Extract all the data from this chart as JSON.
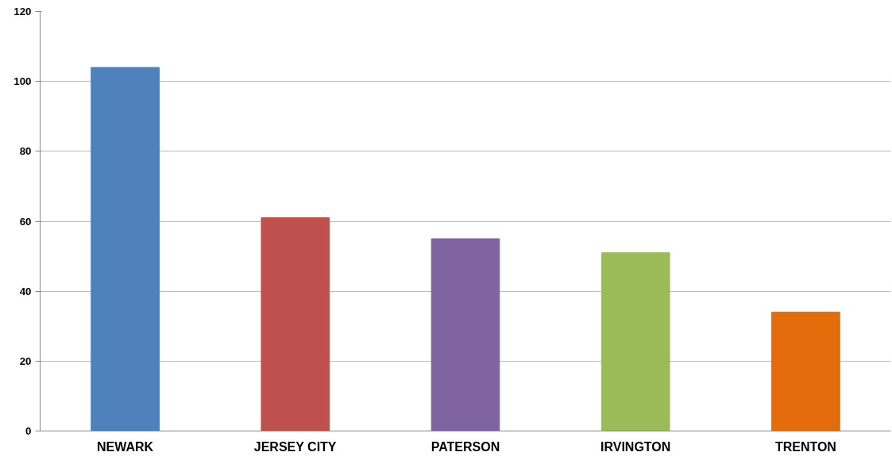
{
  "chart_data": {
    "type": "bar",
    "categories": [
      "NEWARK",
      "JERSEY CITY",
      "PATERSON",
      "IRVINGTON",
      "TRENTON"
    ],
    "values": [
      104,
      61,
      55,
      51,
      34
    ],
    "colors": [
      "#4f81bd",
      "#c0504d",
      "#8064a2",
      "#9bbb59",
      "#e46c0a"
    ],
    "ylim": [
      0,
      120
    ],
    "yticks": [
      0,
      20,
      40,
      60,
      80,
      100,
      120
    ],
    "grid": "y"
  }
}
